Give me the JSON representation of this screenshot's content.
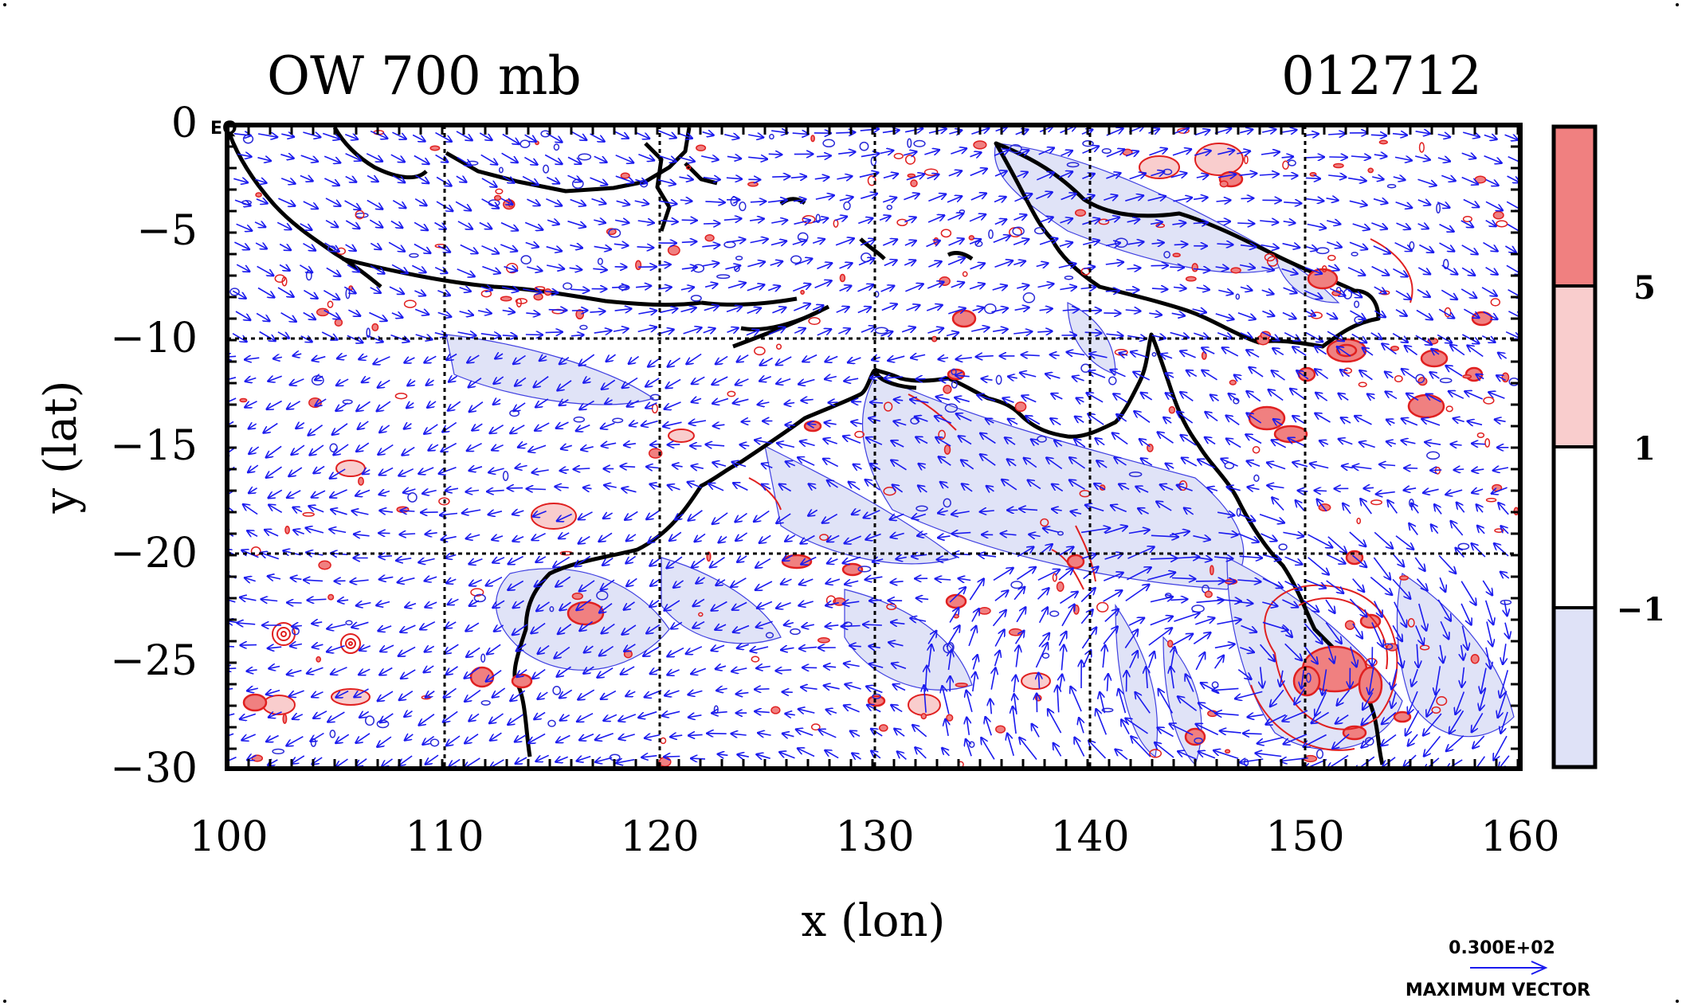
{
  "title": "OW 700 mb",
  "timestamp": "012712",
  "corner_label": "EQ",
  "x_axis": {
    "label": "x (lon)",
    "ticks": [
      "100",
      "110",
      "120",
      "130",
      "140",
      "150",
      "160"
    ],
    "range": [
      100,
      160
    ]
  },
  "y_axis": {
    "label": "y (lat)",
    "ticks": [
      "0",
      "−5",
      "−10",
      "−15",
      "−20",
      "−25",
      "−30"
    ],
    "range": [
      -30,
      0
    ]
  },
  "colorbar": {
    "labels": [
      "5",
      "1",
      "−1"
    ],
    "colors": [
      "#f08080",
      "#f9cdcd",
      "#ffffff",
      "#dfe2f7"
    ]
  },
  "vector_key": {
    "magnitude": "0.300E+02",
    "caption": "MAXIMUM VECTOR"
  },
  "colors": {
    "vector": "#1a1aee",
    "positive_contour": "#e02020",
    "positive_fill": "#f08080",
    "negative_fill": "#dfe2f7",
    "coast": "#000000"
  },
  "chart_data": {
    "type": "map",
    "title": "OW 700 mb",
    "subtitle": "012712",
    "xlabel": "x (lon)",
    "ylabel": "y (lat)",
    "xlim": [
      100,
      160
    ],
    "ylim": [
      -30,
      0
    ],
    "grid": true,
    "color_levels": [
      -1,
      1,
      5
    ],
    "vector_scale": "0.300E+02"
  }
}
